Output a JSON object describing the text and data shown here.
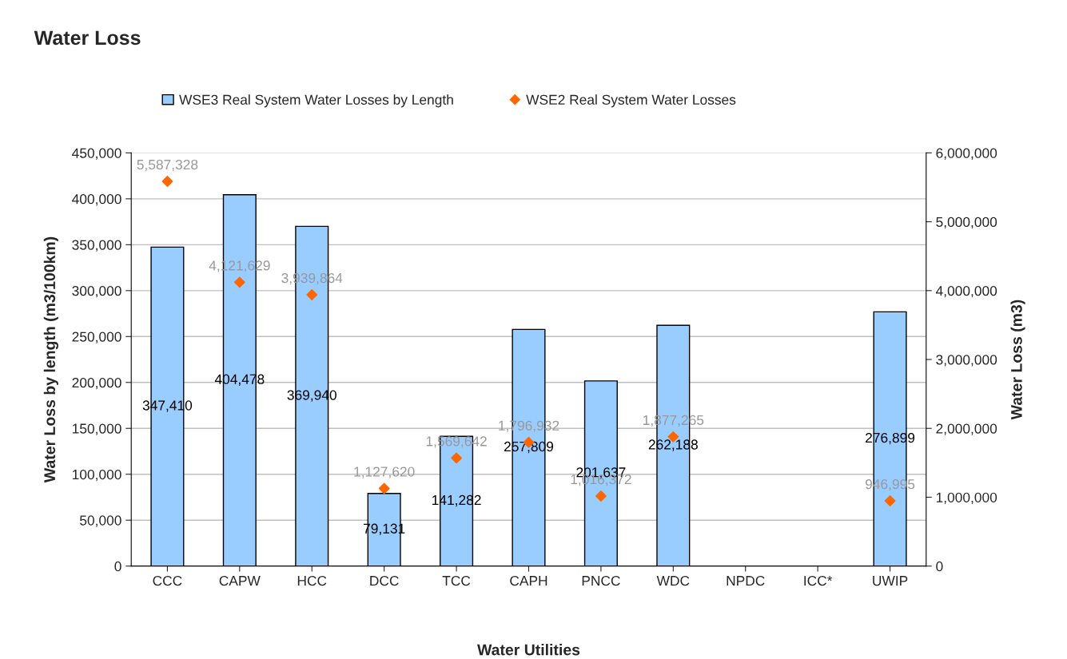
{
  "chart_data": {
    "type": "bar",
    "title": "Water Loss",
    "xlabel": "Water Utilities",
    "ylabel": "Water Loss by length (m3/100km)",
    "y2label": "Water Loss (m3)",
    "categories": [
      "CCC",
      "CAPW",
      "HCC",
      "DCC",
      "TCC",
      "CAPH",
      "PNCC",
      "WDC",
      "NPDC",
      "ICC*",
      "UWIP"
    ],
    "series": [
      {
        "name": "WSE3 Real System Water Losses by Length",
        "color": "#99ccff",
        "values": [
          347410,
          404478,
          369940,
          79131,
          141282,
          257809,
          201637,
          262188,
          null,
          null,
          276899
        ],
        "value_labels": [
          "347,410",
          "404,478",
          "369,940",
          "79,131",
          "141,282",
          "257,809",
          "201,637",
          "262,188",
          null,
          null,
          "276,899"
        ]
      },
      {
        "name": "WSE2 Real System Water Losses",
        "type": "scatter",
        "axis": "y2",
        "color": "#ff6600",
        "marker": "diamond",
        "values": [
          5587328,
          4121629,
          3939864,
          1127620,
          1569642,
          1796932,
          1016372,
          1877265,
          null,
          null,
          946995
        ],
        "value_labels": [
          "5,587,328",
          "4,121,629",
          "3,939,864",
          "1,127,620",
          "1,569,642",
          "1,796,932",
          "1,016,372",
          "1,877,265",
          null,
          null,
          "946,995"
        ]
      }
    ],
    "ylim": [
      0,
      450000
    ],
    "yticks": [
      {
        "value": 0,
        "label": "0"
      },
      {
        "value": 50000,
        "label": "50,000"
      },
      {
        "value": 100000,
        "label": "100,000"
      },
      {
        "value": 150000,
        "label": "150,000"
      },
      {
        "value": 200000,
        "label": "200,000"
      },
      {
        "value": 250000,
        "label": "250,000"
      },
      {
        "value": 300000,
        "label": "300,000"
      },
      {
        "value": 350000,
        "label": "350,000"
      },
      {
        "value": 400000,
        "label": "400,000"
      },
      {
        "value": 450000,
        "label": "450,000"
      }
    ],
    "y2lim": [
      0,
      6000000
    ],
    "y2ticks": [
      {
        "value": 0,
        "label": "0"
      },
      {
        "value": 1000000,
        "label": "1,000,000"
      },
      {
        "value": 2000000,
        "label": "2,000,000"
      },
      {
        "value": 3000000,
        "label": "3,000,000"
      },
      {
        "value": 4000000,
        "label": "4,000,000"
      },
      {
        "value": 5000000,
        "label": "5,000,000"
      },
      {
        "value": 6000000,
        "label": "6,000,000"
      }
    ],
    "grid": "y",
    "legend": "top"
  }
}
